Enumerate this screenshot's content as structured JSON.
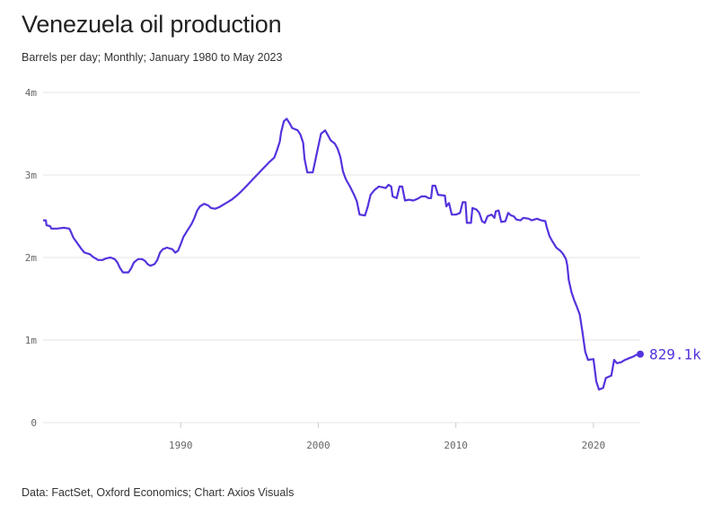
{
  "header": {
    "title": "Venezuela oil production",
    "subtitle": "Barrels per day; Monthly; January 1980 to May 2023"
  },
  "footer": {
    "source": "Data: FactSet, Oxford Economics; Chart: Axios Visuals"
  },
  "colors": {
    "line": "#5533dd",
    "grid": "#e6e6e6",
    "tick": "#666666"
  },
  "chart_data": {
    "type": "line",
    "title": "Venezuela oil production",
    "subtitle": "Barrels per day; Monthly; January 1980 to May 2023",
    "xlabel": "",
    "ylabel": "",
    "xlim": [
      1980,
      2023.4
    ],
    "ylim": [
      0,
      4000000
    ],
    "x_ticks": [
      1990,
      2000,
      2010,
      2020
    ],
    "x_tick_labels": [
      "1990",
      "2000",
      "2010",
      "2020"
    ],
    "y_ticks": [
      0,
      1000000,
      2000000,
      3000000,
      4000000
    ],
    "y_tick_labels": [
      "0",
      "1m",
      "2m",
      "3m",
      "4m"
    ],
    "grid": "horizontal",
    "legend": "none",
    "end_label": "829.1k",
    "series": [
      {
        "values": [
          [
            1980.0,
            2450000
          ],
          [
            1980.2,
            2450000
          ],
          [
            1980.25,
            2390000
          ],
          [
            1980.5,
            2380000
          ],
          [
            1980.6,
            2350000
          ],
          [
            1981.0,
            2350000
          ],
          [
            1981.5,
            2360000
          ],
          [
            1981.9,
            2350000
          ],
          [
            1982.0,
            2320000
          ],
          [
            1982.2,
            2240000
          ],
          [
            1982.5,
            2170000
          ],
          [
            1982.8,
            2100000
          ],
          [
            1983.0,
            2060000
          ],
          [
            1983.4,
            2040000
          ],
          [
            1983.6,
            2010000
          ],
          [
            1984.0,
            1970000
          ],
          [
            1984.3,
            1970000
          ],
          [
            1984.6,
            1990000
          ],
          [
            1984.9,
            2000000
          ],
          [
            1985.2,
            1980000
          ],
          [
            1985.4,
            1940000
          ],
          [
            1985.6,
            1870000
          ],
          [
            1985.8,
            1820000
          ],
          [
            1986.2,
            1820000
          ],
          [
            1986.4,
            1870000
          ],
          [
            1986.6,
            1940000
          ],
          [
            1986.9,
            1980000
          ],
          [
            1987.2,
            1980000
          ],
          [
            1987.4,
            1960000
          ],
          [
            1987.6,
            1920000
          ],
          [
            1987.8,
            1900000
          ],
          [
            1988.1,
            1920000
          ],
          [
            1988.3,
            1970000
          ],
          [
            1988.5,
            2060000
          ],
          [
            1988.7,
            2100000
          ],
          [
            1989.0,
            2120000
          ],
          [
            1989.4,
            2100000
          ],
          [
            1989.6,
            2060000
          ],
          [
            1989.8,
            2080000
          ],
          [
            1990.0,
            2160000
          ],
          [
            1990.2,
            2250000
          ],
          [
            1990.5,
            2330000
          ],
          [
            1990.8,
            2410000
          ],
          [
            1991.0,
            2480000
          ],
          [
            1991.2,
            2570000
          ],
          [
            1991.4,
            2620000
          ],
          [
            1991.7,
            2650000
          ],
          [
            1992.0,
            2630000
          ],
          [
            1992.2,
            2600000
          ],
          [
            1992.5,
            2590000
          ],
          [
            1992.8,
            2610000
          ],
          [
            1993.0,
            2630000
          ],
          [
            1993.3,
            2660000
          ],
          [
            1993.7,
            2700000
          ],
          [
            1994.0,
            2740000
          ],
          [
            1994.4,
            2800000
          ],
          [
            1994.8,
            2870000
          ],
          [
            1995.2,
            2940000
          ],
          [
            1995.6,
            3010000
          ],
          [
            1996.0,
            3080000
          ],
          [
            1996.4,
            3150000
          ],
          [
            1996.8,
            3210000
          ],
          [
            1997.0,
            3300000
          ],
          [
            1997.2,
            3400000
          ],
          [
            1997.3,
            3520000
          ],
          [
            1997.5,
            3650000
          ],
          [
            1997.7,
            3680000
          ],
          [
            1997.9,
            3630000
          ],
          [
            1998.1,
            3570000
          ],
          [
            1998.5,
            3540000
          ],
          [
            1998.7,
            3490000
          ],
          [
            1998.9,
            3390000
          ],
          [
            1999.0,
            3200000
          ],
          [
            1999.2,
            3030000
          ],
          [
            1999.6,
            3030000
          ],
          [
            1999.8,
            3190000
          ],
          [
            2000.0,
            3350000
          ],
          [
            2000.2,
            3500000
          ],
          [
            2000.5,
            3540000
          ],
          [
            2000.7,
            3480000
          ],
          [
            2000.9,
            3420000
          ],
          [
            2001.2,
            3380000
          ],
          [
            2001.4,
            3320000
          ],
          [
            2001.6,
            3220000
          ],
          [
            2001.8,
            3040000
          ],
          [
            2002.0,
            2950000
          ],
          [
            2002.3,
            2860000
          ],
          [
            2002.6,
            2760000
          ],
          [
            2002.8,
            2680000
          ],
          [
            2003.0,
            2520000
          ],
          [
            2003.4,
            2510000
          ],
          [
            2003.6,
            2620000
          ],
          [
            2003.8,
            2760000
          ],
          [
            2004.1,
            2820000
          ],
          [
            2004.4,
            2860000
          ],
          [
            2004.7,
            2850000
          ],
          [
            2004.9,
            2840000
          ],
          [
            2005.1,
            2880000
          ],
          [
            2005.3,
            2860000
          ],
          [
            2005.4,
            2740000
          ],
          [
            2005.7,
            2720000
          ],
          [
            2005.9,
            2860000
          ],
          [
            2006.1,
            2860000
          ],
          [
            2006.3,
            2690000
          ],
          [
            2006.6,
            2700000
          ],
          [
            2006.9,
            2690000
          ],
          [
            2007.2,
            2710000
          ],
          [
            2007.5,
            2740000
          ],
          [
            2007.8,
            2740000
          ],
          [
            2008.0,
            2720000
          ],
          [
            2008.2,
            2720000
          ],
          [
            2008.3,
            2870000
          ],
          [
            2008.5,
            2870000
          ],
          [
            2008.7,
            2760000
          ],
          [
            2009.2,
            2750000
          ],
          [
            2009.3,
            2620000
          ],
          [
            2009.5,
            2660000
          ],
          [
            2009.7,
            2520000
          ],
          [
            2010.0,
            2520000
          ],
          [
            2010.3,
            2540000
          ],
          [
            2010.5,
            2670000
          ],
          [
            2010.7,
            2670000
          ],
          [
            2010.8,
            2420000
          ],
          [
            2011.1,
            2420000
          ],
          [
            2011.2,
            2600000
          ],
          [
            2011.5,
            2580000
          ],
          [
            2011.7,
            2540000
          ],
          [
            2011.9,
            2440000
          ],
          [
            2012.1,
            2420000
          ],
          [
            2012.3,
            2500000
          ],
          [
            2012.6,
            2520000
          ],
          [
            2012.8,
            2480000
          ],
          [
            2012.9,
            2560000
          ],
          [
            2013.1,
            2570000
          ],
          [
            2013.3,
            2430000
          ],
          [
            2013.6,
            2440000
          ],
          [
            2013.8,
            2540000
          ],
          [
            2014.0,
            2510000
          ],
          [
            2014.2,
            2500000
          ],
          [
            2014.4,
            2460000
          ],
          [
            2014.7,
            2450000
          ],
          [
            2014.9,
            2480000
          ],
          [
            2015.3,
            2470000
          ],
          [
            2015.5,
            2450000
          ],
          [
            2015.7,
            2460000
          ],
          [
            2015.9,
            2470000
          ],
          [
            2016.2,
            2450000
          ],
          [
            2016.5,
            2440000
          ],
          [
            2016.6,
            2370000
          ],
          [
            2016.8,
            2260000
          ],
          [
            2017.0,
            2200000
          ],
          [
            2017.3,
            2120000
          ],
          [
            2017.6,
            2080000
          ],
          [
            2017.8,
            2040000
          ],
          [
            2018.0,
            1980000
          ],
          [
            2018.1,
            1900000
          ],
          [
            2018.2,
            1730000
          ],
          [
            2018.4,
            1580000
          ],
          [
            2018.6,
            1480000
          ],
          [
            2018.8,
            1400000
          ],
          [
            2019.0,
            1310000
          ],
          [
            2019.2,
            1100000
          ],
          [
            2019.4,
            860000
          ],
          [
            2019.6,
            760000
          ],
          [
            2020.0,
            770000
          ],
          [
            2020.2,
            500000
          ],
          [
            2020.4,
            400000
          ],
          [
            2020.7,
            420000
          ],
          [
            2020.9,
            540000
          ],
          [
            2021.3,
            570000
          ],
          [
            2021.5,
            760000
          ],
          [
            2021.7,
            720000
          ],
          [
            2022.0,
            730000
          ],
          [
            2022.3,
            760000
          ],
          [
            2022.6,
            780000
          ],
          [
            2022.9,
            800000
          ],
          [
            2023.1,
            820000
          ],
          [
            2023.4,
            829100
          ]
        ]
      }
    ]
  }
}
